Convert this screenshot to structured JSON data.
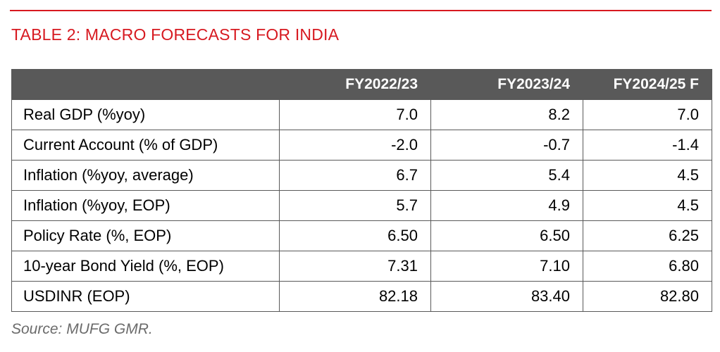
{
  "title": "TABLE 2: MACRO FORECASTS FOR INDIA",
  "table": {
    "headers": [
      "",
      "FY2022/23",
      "FY2023/24",
      "FY2024/25 F"
    ],
    "rows": [
      [
        "Real GDP (%yoy)",
        "7.0",
        "8.2",
        "7.0"
      ],
      [
        "Current Account (% of GDP)",
        "-2.0",
        "-0.7",
        "-1.4"
      ],
      [
        "Inflation (%yoy, average)",
        "6.7",
        "5.4",
        "4.5"
      ],
      [
        "Inflation (%yoy, EOP)",
        "5.7",
        "4.9",
        "4.5"
      ],
      [
        "Policy Rate (%, EOP)",
        "6.50",
        "6.50",
        "6.25"
      ],
      [
        "10-year Bond Yield (%, EOP)",
        "7.31",
        "7.10",
        "6.80"
      ],
      [
        "USDINR (EOP)",
        "82.18",
        "83.40",
        "82.80"
      ]
    ]
  },
  "source": "Source: MUFG GMR.",
  "colors": {
    "accent": "#d71920",
    "header_bg": "#595959",
    "header_text": "#ffffff",
    "source_text": "#6b6b6b"
  }
}
